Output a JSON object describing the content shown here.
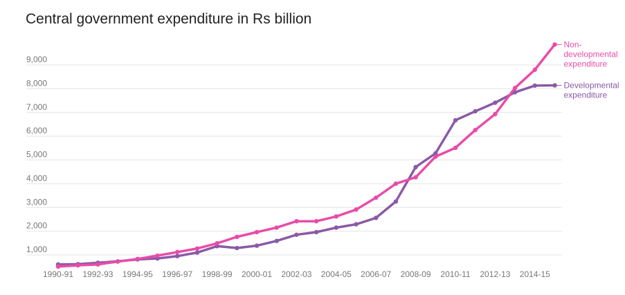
{
  "chart_data": {
    "type": "line",
    "title": "Central government expenditure in Rs billion",
    "xlabel": "",
    "ylabel": "",
    "ylim": [
      700,
      10000
    ],
    "y_ticks": [
      "1,000",
      "2,000",
      "3,000",
      "4,000",
      "5,000",
      "6,000",
      "7,000",
      "8,000",
      "9,000"
    ],
    "y_tick_values": [
      1000,
      2000,
      3000,
      4000,
      5000,
      6000,
      7000,
      8000,
      9000
    ],
    "x_tick_labels": [
      "1990-91",
      "1992-93",
      "1994-95",
      "1996-97",
      "1998-99",
      "2000-01",
      "2002-03",
      "2004-05",
      "2006-07",
      "2008-09",
      "2010-11",
      "2012-13",
      "2014-15"
    ],
    "x": [
      "1990-91",
      "1991-92",
      "1992-93",
      "1993-94",
      "1994-95",
      "1995-96",
      "1996-97",
      "1997-98",
      "1998-99",
      "1999-00",
      "2000-01",
      "2001-02",
      "2002-03",
      "2003-04",
      "2004-05",
      "2005-06",
      "2006-07",
      "2007-08",
      "2008-09",
      "2009-10",
      "2010-11",
      "2011-12",
      "2012-13",
      "2013-14",
      "2014-15",
      "2015-16"
    ],
    "series": [
      {
        "name": "Non-developmental expenditure",
        "label_lines": [
          "Non-",
          "developmental",
          "expenditure"
        ],
        "color": "#e84ca8",
        "values": [
          510,
          560,
          600,
          720,
          830,
          970,
          1120,
          1270,
          1490,
          1760,
          1960,
          2150,
          2420,
          2420,
          2620,
          2910,
          3410,
          4000,
          4270,
          5140,
          5510,
          6260,
          6930,
          8030,
          8800,
          9860
        ]
      },
      {
        "name": "Developmental expenditure",
        "label_lines": [
          "Developmental",
          "expenditure"
        ],
        "color": "#8a5aa6",
        "values": [
          600,
          610,
          670,
          730,
          810,
          850,
          950,
          1100,
          1370,
          1290,
          1390,
          1590,
          1850,
          1960,
          2150,
          2290,
          2560,
          3250,
          4700,
          5280,
          6670,
          7050,
          7410,
          7850,
          8130,
          8140
        ]
      }
    ]
  }
}
